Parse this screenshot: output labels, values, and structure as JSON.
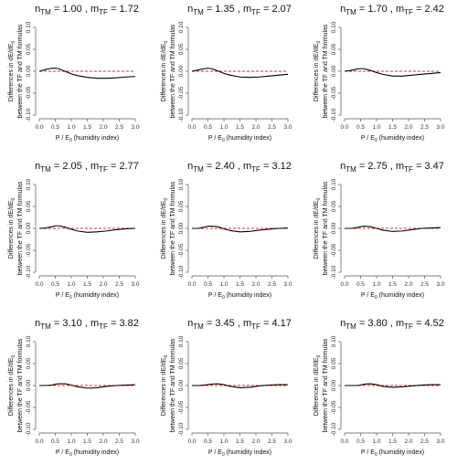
{
  "figure": {
    "ylabel_line1": "Differences in dE/dE",
    "ylabel_sub": "0",
    "ylabel_line2": "between the TF and TM formulas",
    "xlabel_prefix": "P / E",
    "xlabel_sub": "0",
    "xlabel_suffix": "(humidity index)",
    "title_n": "n",
    "title_n_sub": "TM",
    "title_m": "m",
    "title_m_sub": "TF",
    "colors": {
      "curve": "#000000",
      "zero_line": "#e03030",
      "axis": "#555555"
    }
  },
  "chart_data": [
    {
      "type": "line",
      "n_tm": "1.00",
      "m_tf": "1.72",
      "x": [
        0.0,
        0.2,
        0.4,
        0.5,
        0.6,
        0.8,
        1.0,
        1.2,
        1.5,
        1.8,
        2.1,
        2.4,
        2.7,
        3.0
      ],
      "series": [
        {
          "values": [
            0.0,
            0.004,
            0.007,
            0.007,
            0.006,
            0.0,
            -0.006,
            -0.01,
            -0.014,
            -0.016,
            -0.016,
            -0.015,
            -0.013,
            -0.012
          ]
        }
      ],
      "ylim": [
        -0.1,
        0.1
      ],
      "xlim": [
        0.0,
        3.0
      ],
      "yticks": [
        "-0.10",
        "-0.05",
        "0.00",
        "0.05",
        "0.10"
      ],
      "xticks": [
        "0.0",
        "0.5",
        "1.0",
        "1.5",
        "2.0",
        "2.5",
        "3.0"
      ]
    },
    {
      "type": "line",
      "n_tm": "1.35",
      "m_tf": "2.07",
      "x": [
        0.0,
        0.2,
        0.4,
        0.5,
        0.6,
        0.8,
        1.0,
        1.2,
        1.5,
        1.8,
        2.1,
        2.4,
        2.7,
        3.0
      ],
      "series": [
        {
          "values": [
            0.0,
            0.003,
            0.006,
            0.007,
            0.006,
            0.001,
            -0.005,
            -0.009,
            -0.013,
            -0.014,
            -0.013,
            -0.011,
            -0.009,
            -0.007
          ]
        }
      ],
      "ylim": [
        -0.1,
        0.1
      ],
      "xlim": [
        0.0,
        3.0
      ],
      "yticks": [
        "-0.10",
        "-0.05",
        "0.00",
        "0.05",
        "0.10"
      ],
      "xticks": [
        "0.0",
        "0.5",
        "1.0",
        "1.5",
        "2.0",
        "2.5",
        "3.0"
      ]
    },
    {
      "type": "line",
      "n_tm": "1.70",
      "m_tf": "2.42",
      "x": [
        0.0,
        0.2,
        0.4,
        0.5,
        0.6,
        0.8,
        1.0,
        1.2,
        1.5,
        1.8,
        2.1,
        2.4,
        2.7,
        3.0
      ],
      "series": [
        {
          "values": [
            0.0,
            0.002,
            0.005,
            0.006,
            0.006,
            0.002,
            -0.003,
            -0.007,
            -0.011,
            -0.011,
            -0.009,
            -0.007,
            -0.005,
            -0.003
          ]
        }
      ],
      "ylim": [
        -0.1,
        0.1
      ],
      "xlim": [
        0.0,
        3.0
      ],
      "yticks": [
        "-0.10",
        "-0.05",
        "0.00",
        "0.05",
        "0.10"
      ],
      "xticks": [
        "0.0",
        "0.5",
        "1.0",
        "1.5",
        "2.0",
        "2.5",
        "3.0"
      ]
    },
    {
      "type": "line",
      "n_tm": "2.05",
      "m_tf": "2.77",
      "x": [
        0.0,
        0.2,
        0.4,
        0.5,
        0.6,
        0.8,
        1.0,
        1.2,
        1.5,
        1.8,
        2.1,
        2.4,
        2.7,
        3.0
      ],
      "series": [
        {
          "values": [
            0.0,
            0.001,
            0.004,
            0.006,
            0.006,
            0.003,
            -0.002,
            -0.006,
            -0.009,
            -0.008,
            -0.006,
            -0.003,
            -0.001,
            0.0
          ]
        }
      ],
      "ylim": [
        -0.1,
        0.1
      ],
      "xlim": [
        0.0,
        3.0
      ],
      "yticks": [
        "-0.10",
        "-0.05",
        "0.00",
        "0.05",
        "0.10"
      ],
      "xticks": [
        "0.0",
        "0.5",
        "1.0",
        "1.5",
        "2.0",
        "2.5",
        "3.0"
      ]
    },
    {
      "type": "line",
      "n_tm": "2.40",
      "m_tf": "3.12",
      "x": [
        0.0,
        0.2,
        0.4,
        0.5,
        0.6,
        0.8,
        1.0,
        1.2,
        1.5,
        1.8,
        2.1,
        2.4,
        2.7,
        3.0
      ],
      "series": [
        {
          "values": [
            0.0,
            0.0,
            0.003,
            0.005,
            0.005,
            0.004,
            -0.001,
            -0.005,
            -0.008,
            -0.007,
            -0.004,
            -0.002,
            0.0,
            0.001
          ]
        }
      ],
      "ylim": [
        -0.1,
        0.1
      ],
      "xlim": [
        0.0,
        3.0
      ],
      "yticks": [
        "-0.10",
        "-0.05",
        "0.00",
        "0.05",
        "0.10"
      ],
      "xticks": [
        "0.0",
        "0.5",
        "1.0",
        "1.5",
        "2.0",
        "2.5",
        "3.0"
      ]
    },
    {
      "type": "line",
      "n_tm": "2.75",
      "m_tf": "3.47",
      "x": [
        0.0,
        0.2,
        0.4,
        0.5,
        0.6,
        0.8,
        1.0,
        1.2,
        1.5,
        1.8,
        2.1,
        2.4,
        2.7,
        3.0
      ],
      "series": [
        {
          "values": [
            0.0,
            0.0,
            0.002,
            0.004,
            0.005,
            0.004,
            0.0,
            -0.004,
            -0.007,
            -0.006,
            -0.003,
            0.0,
            0.001,
            0.002
          ]
        }
      ],
      "ylim": [
        -0.1,
        0.1
      ],
      "xlim": [
        0.0,
        3.0
      ],
      "yticks": [
        "-0.10",
        "-0.05",
        "0.00",
        "0.05",
        "0.10"
      ],
      "xticks": [
        "0.0",
        "0.5",
        "1.0",
        "1.5",
        "2.0",
        "2.5",
        "3.0"
      ]
    },
    {
      "type": "line",
      "n_tm": "3.10",
      "m_tf": "3.82",
      "x": [
        0.0,
        0.2,
        0.4,
        0.5,
        0.6,
        0.8,
        1.0,
        1.2,
        1.5,
        1.8,
        2.1,
        2.4,
        2.7,
        3.0
      ],
      "series": [
        {
          "values": [
            0.0,
            0.0,
            0.001,
            0.003,
            0.004,
            0.004,
            0.001,
            -0.003,
            -0.006,
            -0.005,
            -0.002,
            0.0,
            0.001,
            0.002
          ]
        }
      ],
      "ylim": [
        -0.1,
        0.1
      ],
      "xlim": [
        0.0,
        3.0
      ],
      "yticks": [
        "-0.10",
        "-0.05",
        "0.00",
        "0.05",
        "0.10"
      ],
      "xticks": [
        "0.0",
        "0.5",
        "1.0",
        "1.5",
        "2.0",
        "2.5",
        "3.0"
      ]
    },
    {
      "type": "line",
      "n_tm": "3.45",
      "m_tf": "4.17",
      "x": [
        0.0,
        0.2,
        0.4,
        0.5,
        0.6,
        0.8,
        1.0,
        1.2,
        1.5,
        1.8,
        2.1,
        2.4,
        2.7,
        3.0
      ],
      "series": [
        {
          "values": [
            0.0,
            0.0,
            0.001,
            0.002,
            0.003,
            0.004,
            0.002,
            -0.002,
            -0.005,
            -0.004,
            -0.001,
            0.001,
            0.002,
            0.002
          ]
        }
      ],
      "ylim": [
        -0.1,
        0.1
      ],
      "xlim": [
        0.0,
        3.0
      ],
      "yticks": [
        "-0.10",
        "-0.05",
        "0.00",
        "0.05",
        "0.10"
      ],
      "xticks": [
        "0.0",
        "0.5",
        "1.0",
        "1.5",
        "2.0",
        "2.5",
        "3.0"
      ]
    },
    {
      "type": "line",
      "n_tm": "3.80",
      "m_tf": "4.52",
      "x": [
        0.0,
        0.2,
        0.4,
        0.5,
        0.6,
        0.8,
        1.0,
        1.2,
        1.5,
        1.8,
        2.1,
        2.4,
        2.7,
        3.0
      ],
      "series": [
        {
          "values": [
            0.0,
            0.0,
            0.0,
            0.001,
            0.003,
            0.004,
            0.002,
            -0.002,
            -0.004,
            -0.003,
            -0.001,
            0.001,
            0.002,
            0.002
          ]
        }
      ],
      "ylim": [
        -0.1,
        0.1
      ],
      "xlim": [
        0.0,
        3.0
      ],
      "yticks": [
        "-0.10",
        "-0.05",
        "0.00",
        "0.05",
        "0.10"
      ],
      "xticks": [
        "0.0",
        "0.5",
        "1.0",
        "1.5",
        "2.0",
        "2.5",
        "3.0"
      ]
    }
  ]
}
